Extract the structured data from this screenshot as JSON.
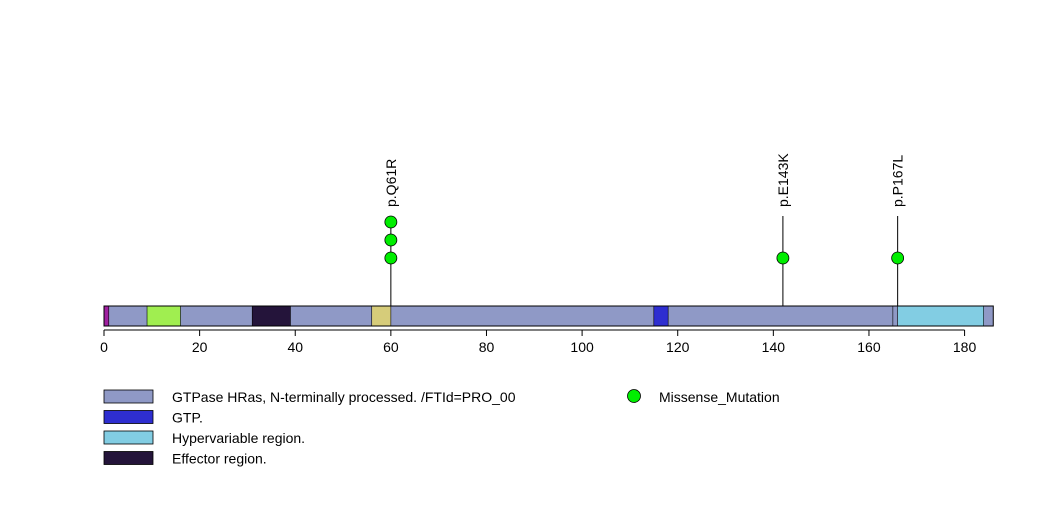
{
  "chart_data": {
    "type": "lollipop",
    "protein_length": 186,
    "x_axis": {
      "range": [
        0,
        186
      ],
      "ticks": [
        0,
        20,
        40,
        60,
        80,
        100,
        120,
        140,
        160,
        180
      ],
      "tick_labels": [
        "0",
        "20",
        "40",
        "60",
        "80",
        "100",
        "120",
        "140",
        "160",
        "180"
      ]
    },
    "domains": [
      {
        "start": 0,
        "end": 1,
        "color": "#a020a0"
      },
      {
        "start": 1,
        "end": 9,
        "color": "#8f99c6"
      },
      {
        "start": 9,
        "end": 16,
        "color": "#a0ee50"
      },
      {
        "start": 16,
        "end": 31,
        "color": "#8f99c6"
      },
      {
        "start": 31,
        "end": 39,
        "color": "#24143a"
      },
      {
        "start": 39,
        "end": 56,
        "color": "#8f99c6"
      },
      {
        "start": 56,
        "end": 60,
        "color": "#d6cc7a"
      },
      {
        "start": 60,
        "end": 115,
        "color": "#8f99c6"
      },
      {
        "start": 115,
        "end": 118,
        "color": "#2e2ed0"
      },
      {
        "start": 118,
        "end": 165,
        "color": "#8f99c6"
      },
      {
        "start": 165,
        "end": 166,
        "color": "#8f99c6"
      },
      {
        "start": 166,
        "end": 184,
        "color": "#82cde3"
      },
      {
        "start": 184,
        "end": 186,
        "color": "#8f99c6"
      }
    ],
    "mutations": [
      {
        "position": 60,
        "label": "p.Q61R",
        "count": 3,
        "type": "Missense_Mutation"
      },
      {
        "position": 142,
        "label": "p.E143K",
        "count": 1,
        "type": "Missense_Mutation"
      },
      {
        "position": 166,
        "label": "p.P167L",
        "count": 1,
        "type": "Missense_Mutation"
      }
    ],
    "mutation_color": "#00ee00",
    "legend": {
      "placement": "bottom-left",
      "domain_entries": [
        {
          "label": "GTPase HRas, N-terminally processed. /FTId=PRO_00",
          "color": "#8f99c6"
        },
        {
          "label": "GTP.",
          "color": "#2e2ed0"
        },
        {
          "label": "Hypervariable region.",
          "color": "#82cde3"
        },
        {
          "label": "Effector region.",
          "color": "#24143a"
        }
      ],
      "mutation_entries": [
        {
          "label": "Missense_Mutation",
          "color": "#00ee00"
        }
      ]
    }
  }
}
